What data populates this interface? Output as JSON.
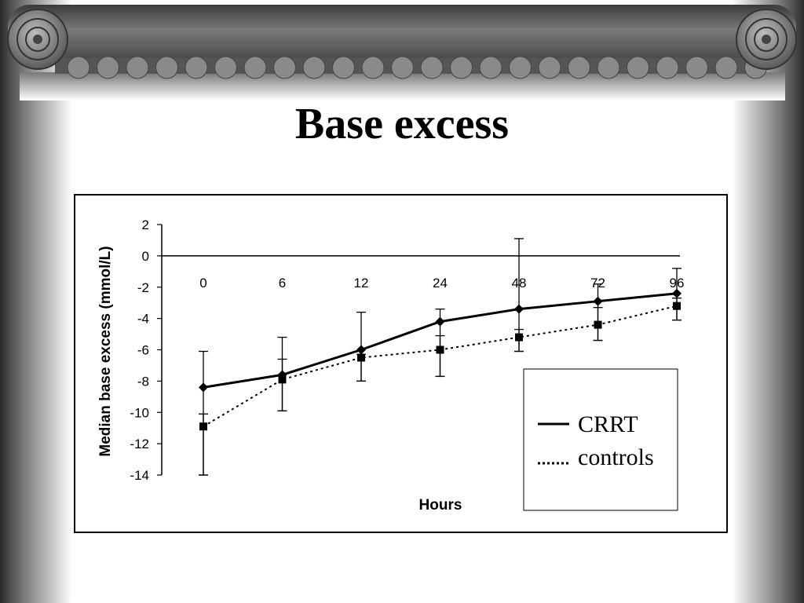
{
  "slide": {
    "title": "Base excess"
  },
  "chart_data": {
    "type": "line",
    "title": "",
    "xlabel": "Hours",
    "ylabel": "Median base excess (mmol/L)",
    "categories": [
      "0",
      "6",
      "12",
      "24",
      "48",
      "72",
      "96"
    ],
    "ylim": [
      -14,
      2
    ],
    "yticks": [
      2,
      0,
      -2,
      -4,
      -6,
      -8,
      -10,
      -12,
      -14
    ],
    "grid": false,
    "legend_position": "bottom-right",
    "series": [
      {
        "name": "CRRT",
        "style": "solid",
        "marker": "diamond",
        "color": "#000000",
        "values": [
          -8.4,
          -7.6,
          -6.0,
          -4.2,
          -3.4,
          -2.9,
          -2.4
        ],
        "err_low": [
          -14.0,
          -9.9,
          -8.0,
          -7.7,
          -6.1,
          -5.4,
          -4.1
        ],
        "err_high": [
          -6.1,
          -5.2,
          -3.6,
          -3.4,
          1.1,
          -1.8,
          -0.8
        ]
      },
      {
        "name": "controls",
        "style": "dotted",
        "marker": "square",
        "color": "#000000",
        "values": [
          -10.9,
          -7.9,
          -6.5,
          -6.0,
          -5.2,
          -4.4,
          -3.2
        ],
        "err_low": [
          -14.0,
          -9.9,
          -8.0,
          -7.7,
          -6.1,
          -5.4,
          -4.1
        ],
        "err_high": [
          -10.1,
          -6.6,
          -6.3,
          -5.1,
          -4.7,
          -3.3,
          -2.7
        ]
      }
    ]
  }
}
